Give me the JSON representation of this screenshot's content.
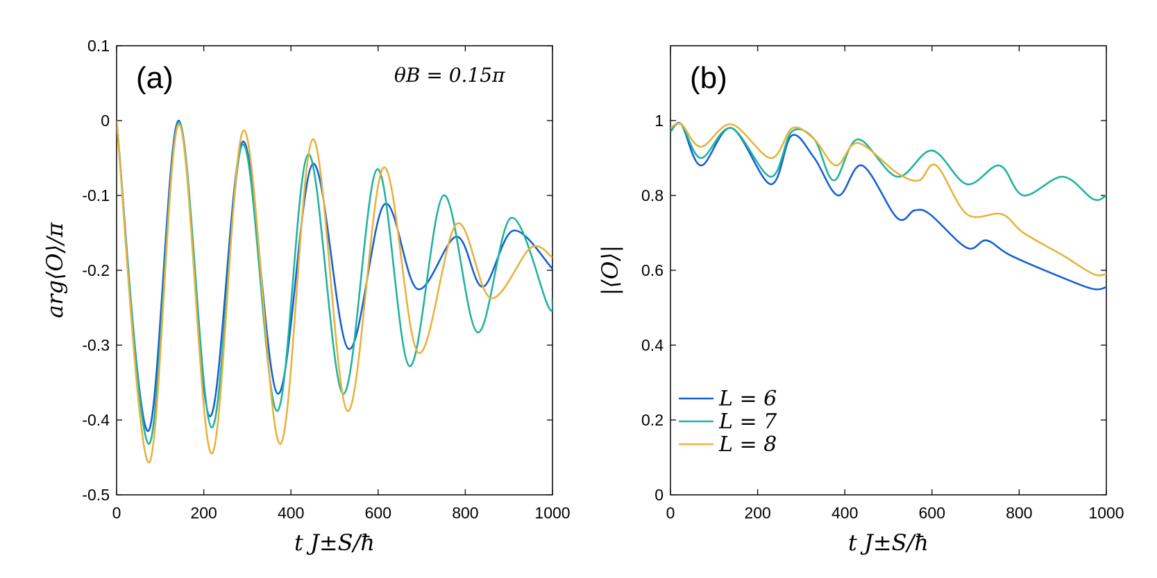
{
  "chart_data": [
    {
      "type": "line",
      "panel_label": "(a)",
      "annotation": "θB = 0.15π",
      "xlabel": "t J±S/ħ",
      "ylabel": "arg⟨O⟩/π",
      "xlim": [
        0,
        1000
      ],
      "ylim": [
        -0.5,
        0.1
      ],
      "xticks": [
        0,
        200,
        400,
        600,
        800,
        1000
      ],
      "xtick_labels": [
        "0",
        "200",
        "400",
        "600",
        "800",
        "1000"
      ],
      "yticks": [
        -0.5,
        -0.4,
        -0.3,
        -0.2,
        -0.1,
        0,
        0.1
      ],
      "ytick_labels": [
        "-0.5",
        "-0.4",
        "-0.3",
        "-0.2",
        "-0.1",
        "0",
        "0.1"
      ],
      "series": [
        {
          "name": "L = 6",
          "color": "#1560d4",
          "x": [
            0,
            72,
            142,
            214,
            290,
            370,
            450,
            532,
            614,
            690,
            780,
            840,
            910,
            1000
          ],
          "y": [
            0,
            -0.415,
            0,
            -0.395,
            -0.028,
            -0.365,
            -0.058,
            -0.305,
            -0.112,
            -0.225,
            -0.155,
            -0.222,
            -0.147,
            -0.198
          ]
        },
        {
          "name": "L = 7",
          "color": "#1fb39e",
          "x": [
            0,
            74,
            143,
            218,
            290,
            368,
            440,
            520,
            598,
            672,
            750,
            828,
            905,
            990,
            1000
          ],
          "y": [
            0,
            -0.432,
            -0.002,
            -0.41,
            -0.032,
            -0.388,
            -0.045,
            -0.365,
            -0.065,
            -0.328,
            -0.1,
            -0.283,
            -0.13,
            -0.248,
            -0.238
          ]
        },
        {
          "name": "L = 8",
          "color": "#e8b23e",
          "x": [
            0,
            74,
            143,
            218,
            292,
            375,
            450,
            530,
            612,
            692,
            780,
            858,
            950,
            1000
          ],
          "y": [
            0,
            -0.457,
            -0.005,
            -0.445,
            -0.013,
            -0.432,
            -0.025,
            -0.388,
            -0.063,
            -0.31,
            -0.138,
            -0.237,
            -0.17,
            -0.183
          ]
        }
      ]
    },
    {
      "type": "line",
      "panel_label": "(b)",
      "xlabel": "t J±S/ħ",
      "ylabel": "|⟨O⟩|",
      "xlim": [
        0,
        1000
      ],
      "ylim": [
        0,
        1.2
      ],
      "xticks": [
        0,
        200,
        400,
        600,
        800,
        1000
      ],
      "xtick_labels": [
        "0",
        "200",
        "400",
        "600",
        "800",
        "1000"
      ],
      "yticks": [
        0,
        0.2,
        0.4,
        0.6,
        0.8,
        1
      ],
      "ytick_labels": [
        "0",
        "0.2",
        "0.4",
        "0.6",
        "0.8",
        "1"
      ],
      "legend": [
        "L = 6",
        "L = 7",
        "L = 8"
      ],
      "legend_position": "bottom-left",
      "series": [
        {
          "name": "L = 6",
          "color": "#1560d4",
          "x": [
            0,
            25,
            70,
            140,
            230,
            278,
            330,
            385,
            440,
            520,
            560,
            595,
            680,
            725,
            780,
            900,
            970,
            1000
          ],
          "y": [
            0.97,
            0.99,
            0.88,
            0.98,
            0.83,
            0.96,
            0.9,
            0.8,
            0.88,
            0.74,
            0.76,
            0.75,
            0.66,
            0.68,
            0.64,
            0.58,
            0.55,
            0.555
          ]
        },
        {
          "name": "L = 7",
          "color": "#1fb39e",
          "x": [
            0,
            25,
            70,
            140,
            230,
            278,
            330,
            375,
            430,
            520,
            600,
            680,
            755,
            810,
            900,
            970,
            1000
          ],
          "y": [
            0.97,
            0.99,
            0.9,
            0.98,
            0.85,
            0.97,
            0.95,
            0.84,
            0.95,
            0.85,
            0.92,
            0.83,
            0.88,
            0.8,
            0.85,
            0.79,
            0.8
          ]
        },
        {
          "name": "L = 8",
          "color": "#e8b23e",
          "x": [
            0,
            25,
            70,
            140,
            230,
            280,
            330,
            380,
            430,
            520,
            570,
            610,
            680,
            760,
            810,
            900,
            970,
            1000
          ],
          "y": [
            0.98,
            0.99,
            0.93,
            0.99,
            0.9,
            0.98,
            0.95,
            0.88,
            0.94,
            0.86,
            0.84,
            0.88,
            0.75,
            0.75,
            0.7,
            0.64,
            0.59,
            0.59
          ]
        }
      ]
    }
  ]
}
